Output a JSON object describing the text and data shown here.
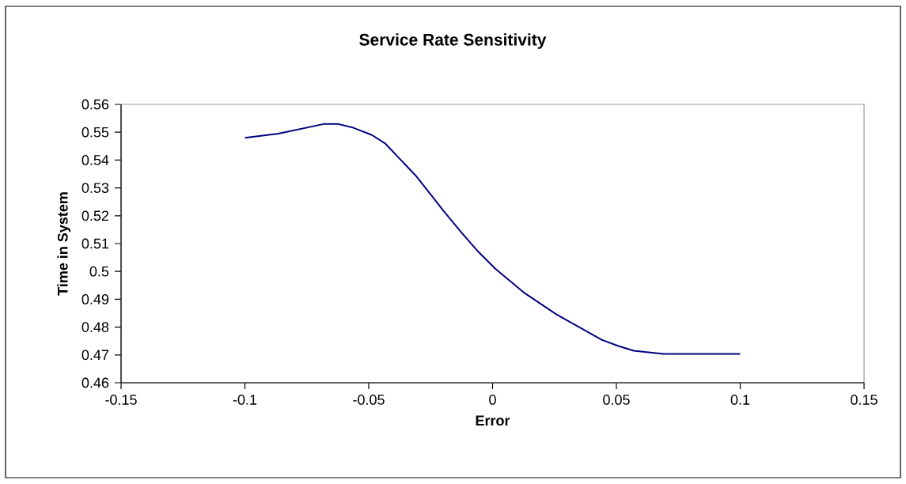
{
  "chart_data": {
    "type": "line",
    "title": "Service Rate Sensitivity",
    "xlabel": "Error",
    "ylabel": "Time in System",
    "x": [
      -0.1,
      -0.0865,
      -0.0679,
      -0.0626,
      -0.0562,
      -0.0487,
      -0.0434,
      -0.0306,
      -0.02,
      -0.0126,
      -0.0057,
      0.0011,
      0.0125,
      0.0257,
      0.0439,
      0.0508,
      0.057,
      0.069,
      0.1
    ],
    "series": [
      {
        "color": "#000080",
        "values": [
          0.548,
          0.5495,
          0.553,
          0.553,
          0.5516,
          0.549,
          0.546,
          0.534,
          0.522,
          0.514,
          0.507,
          0.501,
          0.4925,
          0.4846,
          0.4755,
          0.4732,
          0.4715,
          0.4704,
          0.4704
        ]
      }
    ],
    "xlim": [
      -0.15,
      0.15
    ],
    "xticks": [
      -0.15,
      -0.1,
      -0.05,
      0,
      0.05,
      0.1,
      0.15
    ],
    "ylim": [
      0.46,
      0.56
    ],
    "yticks": [
      0.46,
      0.47,
      0.48,
      0.49,
      0.5,
      0.51,
      0.52,
      0.53,
      0.54,
      0.55,
      0.56
    ],
    "grid": false,
    "legend": false,
    "marker": "none",
    "line_style": "solid"
  }
}
